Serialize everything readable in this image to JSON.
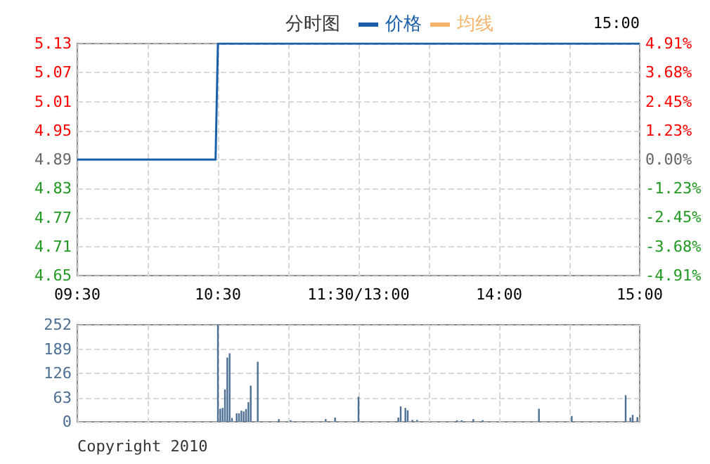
{
  "chart_data": [
    {
      "type": "line",
      "title": "分时图",
      "annotations": [
        "15:00"
      ],
      "categories": [
        "09:30",
        null,
        null,
        null,
        null,
        null,
        null,
        null,
        null,
        null,
        null,
        null,
        null,
        null,
        null,
        null,
        null,
        null,
        null,
        null,
        null,
        null,
        null,
        null,
        null,
        null,
        null,
        null,
        null,
        null,
        null,
        null,
        null,
        null,
        null,
        null,
        null,
        null,
        null,
        null,
        null,
        null,
        null,
        null,
        null,
        null,
        null,
        null,
        null,
        null,
        null,
        null,
        null,
        null,
        null,
        null,
        null,
        null,
        null,
        null,
        "10:30",
        null,
        null,
        null,
        null,
        null,
        null,
        null,
        null,
        null,
        null,
        null,
        null,
        null,
        null,
        null,
        null,
        null,
        null,
        null,
        null,
        null,
        null,
        null,
        null,
        null,
        null,
        null,
        null,
        null,
        null,
        null,
        null,
        null,
        null,
        null,
        null,
        null,
        null,
        null,
        null,
        null,
        null,
        null,
        null,
        null,
        null,
        null,
        null,
        null,
        null,
        null,
        null,
        null,
        null,
        null,
        null,
        null,
        null,
        null,
        "11:30/13:00",
        null,
        null,
        null,
        null,
        null,
        null,
        null,
        null,
        null,
        null,
        null,
        null,
        null,
        null,
        null,
        null,
        null,
        null,
        null,
        null,
        null,
        null,
        null,
        null,
        null,
        null,
        null,
        null,
        null,
        null,
        null,
        null,
        null,
        null,
        null,
        null,
        null,
        null,
        null,
        null,
        null,
        null,
        null,
        null,
        null,
        null,
        null,
        null,
        null,
        null,
        null,
        null,
        null,
        null,
        null,
        null,
        null,
        null,
        null,
        "14:00",
        null,
        null,
        null,
        null,
        null,
        null,
        null,
        null,
        null,
        null,
        null,
        null,
        null,
        null,
        null,
        null,
        null,
        null,
        null,
        null,
        null,
        null,
        null,
        null,
        null,
        null,
        null,
        null,
        null,
        null,
        null,
        null,
        null,
        null,
        null,
        null,
        null,
        null,
        null,
        null,
        null,
        null,
        null,
        null,
        null,
        null,
        null,
        null,
        null,
        null,
        null,
        null,
        null,
        null,
        null,
        null,
        null,
        null,
        null,
        "15:00"
      ],
      "series": [
        {
          "name": "价格",
          "color": "#1a5ea8",
          "values": [
            4.89,
            4.89,
            4.89,
            4.89,
            4.89,
            4.89,
            4.89,
            4.89,
            4.89,
            4.89,
            4.89,
            4.89,
            4.89,
            4.89,
            4.89,
            4.89,
            4.89,
            4.89,
            4.89,
            4.89,
            4.89,
            4.89,
            4.89,
            4.89,
            4.89,
            4.89,
            4.89,
            4.89,
            4.89,
            4.89,
            4.89,
            4.89,
            4.89,
            4.89,
            4.89,
            4.89,
            4.89,
            4.89,
            4.89,
            4.89,
            4.89,
            4.89,
            4.89,
            4.89,
            4.89,
            4.89,
            4.89,
            4.89,
            4.89,
            4.89,
            4.89,
            4.89,
            4.89,
            4.89,
            4.89,
            4.89,
            4.89,
            4.89,
            4.89,
            4.89,
            5.13,
            5.13,
            5.13,
            5.13,
            5.13,
            5.13,
            5.13,
            5.13,
            5.13,
            5.13,
            5.13,
            5.13,
            5.13,
            5.13,
            5.13,
            5.13,
            5.13,
            5.13,
            5.13,
            5.13,
            5.13,
            5.13,
            5.13,
            5.13,
            5.13,
            5.13,
            5.13,
            5.13,
            5.13,
            5.13,
            5.13,
            5.13,
            5.13,
            5.13,
            5.13,
            5.13,
            5.13,
            5.13,
            5.13,
            5.13,
            5.13,
            5.13,
            5.13,
            5.13,
            5.13,
            5.13,
            5.13,
            5.13,
            5.13,
            5.13,
            5.13,
            5.13,
            5.13,
            5.13,
            5.13,
            5.13,
            5.13,
            5.13,
            5.13,
            5.13,
            5.13,
            5.13,
            5.13,
            5.13,
            5.13,
            5.13,
            5.13,
            5.13,
            5.13,
            5.13,
            5.13,
            5.13,
            5.13,
            5.13,
            5.13,
            5.13,
            5.13,
            5.13,
            5.13,
            5.13,
            5.13,
            5.13,
            5.13,
            5.13,
            5.13,
            5.13,
            5.13,
            5.13,
            5.13,
            5.13,
            5.13,
            5.13,
            5.13,
            5.13,
            5.13,
            5.13,
            5.13,
            5.13,
            5.13,
            5.13,
            5.13,
            5.13,
            5.13,
            5.13,
            5.13,
            5.13,
            5.13,
            5.13,
            5.13,
            5.13,
            5.13,
            5.13,
            5.13,
            5.13,
            5.13,
            5.13,
            5.13,
            5.13,
            5.13,
            5.13,
            5.13,
            5.13,
            5.13,
            5.13,
            5.13,
            5.13,
            5.13,
            5.13,
            5.13,
            5.13,
            5.13,
            5.13,
            5.13,
            5.13,
            5.13,
            5.13,
            5.13,
            5.13,
            5.13,
            5.13,
            5.13,
            5.13,
            5.13,
            5.13,
            5.13,
            5.13,
            5.13,
            5.13,
            5.13,
            5.13,
            5.13,
            5.13,
            5.13,
            5.13,
            5.13,
            5.13,
            5.13,
            5.13,
            5.13,
            5.13,
            5.13,
            5.13,
            5.13,
            5.13,
            5.13,
            5.13,
            5.13,
            5.13,
            5.13,
            5.13,
            5.13,
            5.13,
            5.13,
            5.13,
            5.13,
            5.13,
            5.13,
            5.13,
            5.13,
            5.13,
            5.13
          ]
        },
        {
          "name": "均线",
          "color": "#f5b36b",
          "values": [
            null,
            null,
            null,
            null,
            null,
            null,
            null,
            null,
            null,
            null,
            null,
            null,
            null,
            null,
            null,
            null,
            null,
            null,
            null,
            null,
            null,
            null,
            null,
            null,
            null,
            null,
            null,
            null,
            null,
            null,
            null,
            null,
            null,
            null,
            null,
            null,
            null,
            null,
            null,
            null,
            null,
            null,
            null,
            null,
            null,
            null,
            null,
            null,
            null,
            null,
            null,
            null,
            null,
            null,
            null,
            null,
            null,
            null,
            null,
            null,
            null,
            null,
            null,
            null,
            null,
            null,
            null,
            null,
            null,
            null,
            null,
            null,
            null,
            null,
            null,
            null,
            null,
            null,
            null,
            null,
            null,
            null,
            null,
            null,
            null,
            null,
            null,
            null,
            null,
            null,
            null,
            null,
            null,
            null,
            null,
            null,
            null,
            null,
            null,
            null,
            null,
            null,
            null,
            null,
            null,
            null,
            null,
            null,
            null,
            null,
            null,
            null,
            null,
            null,
            null,
            null,
            null,
            null,
            null,
            null,
            null,
            null,
            null,
            null,
            null,
            null,
            null,
            null,
            null,
            null,
            null,
            null,
            null,
            null,
            null,
            null,
            null,
            null,
            null,
            null,
            null,
            null,
            null,
            null,
            null,
            null,
            null,
            null,
            null,
            null,
            null,
            null,
            null,
            null,
            null,
            null,
            null,
            null,
            null,
            null,
            null,
            null,
            null,
            null,
            null,
            null,
            null,
            null,
            null,
            null,
            null,
            null,
            null,
            null,
            null,
            null,
            null,
            null,
            null,
            null,
            null,
            null,
            null,
            null,
            null,
            null,
            null,
            null,
            null,
            null,
            null,
            null,
            null,
            null,
            null,
            null,
            null,
            null,
            null,
            null,
            null,
            null,
            null,
            null,
            null,
            null,
            null,
            null,
            null,
            null,
            null,
            null,
            null,
            null,
            null,
            null,
            null,
            null,
            null,
            null,
            null,
            null,
            null,
            null,
            null,
            null,
            null,
            null,
            null,
            null,
            null,
            null,
            null,
            null,
            null,
            null,
            null,
            null,
            null,
            null,
            null
          ]
        }
      ],
      "ylim": [
        4.65,
        5.13
      ],
      "yticks": [
        4.65,
        4.71,
        4.77,
        4.83,
        4.89,
        4.95,
        5.01,
        5.07,
        5.13
      ],
      "y2lim": [
        -4.91,
        4.91
      ],
      "y2ticks": [
        {
          "value": -4.91,
          "label": "-4.91%"
        },
        {
          "value": -3.68,
          "label": "-3.68%"
        },
        {
          "value": -2.45,
          "label": "-2.45%"
        },
        {
          "value": -1.23,
          "label": "-1.23%"
        },
        {
          "value": 0,
          "label": "0.00%"
        },
        {
          "value": 1.23,
          "label": "1.23%"
        },
        {
          "value": 2.45,
          "label": "2.45%"
        },
        {
          "value": 3.68,
          "label": "3.68%"
        },
        {
          "value": 4.91,
          "label": "4.91%"
        }
      ],
      "grid": true,
      "legend": "top",
      "marker": "none",
      "line_style": "solid"
    },
    {
      "type": "bar",
      "annotations": [
        "Copyright 2010"
      ],
      "color": "#4d6f94",
      "categories": [
        null,
        null,
        null,
        null,
        null,
        null,
        null,
        null,
        null,
        null,
        null,
        null,
        null,
        null,
        null,
        null,
        null,
        null,
        null,
        null,
        null,
        null,
        null,
        null,
        null,
        null,
        null,
        null,
        null,
        null,
        null,
        null,
        null,
        null,
        null,
        null,
        null,
        null,
        null,
        null,
        null,
        null,
        null,
        null,
        null,
        null,
        null,
        null,
        null,
        null,
        null,
        null,
        null,
        null,
        null,
        null,
        null,
        null,
        null,
        null,
        null,
        null,
        null,
        null,
        null,
        null,
        null,
        null,
        null,
        null,
        null,
        null,
        null,
        null,
        null,
        null,
        null,
        null,
        null,
        null,
        null,
        null,
        null,
        null,
        null,
        null,
        null,
        null,
        null,
        null,
        null,
        null,
        null,
        null,
        null,
        null,
        null,
        null,
        null,
        null,
        null,
        null,
        null,
        null,
        null,
        null,
        null,
        null,
        null,
        null,
        null,
        null,
        null,
        null,
        null,
        null,
        null,
        null,
        null,
        null,
        null,
        null,
        null,
        null,
        null,
        null,
        null,
        null,
        null,
        null,
        null,
        null,
        null,
        null,
        null,
        null,
        null,
        null,
        null,
        null,
        null,
        null,
        null,
        null,
        null,
        null,
        null,
        null,
        null,
        null,
        null,
        null,
        null,
        null,
        null,
        null,
        null,
        null,
        null,
        null,
        null,
        null,
        null,
        null,
        null,
        null,
        null,
        null,
        null,
        null,
        null,
        null,
        null,
        null,
        null,
        null,
        null,
        null,
        null,
        null,
        null,
        null,
        null,
        null,
        null,
        null,
        null,
        null,
        null,
        null,
        null,
        null,
        null,
        null,
        null,
        null,
        null,
        null,
        null,
        null,
        null,
        null,
        null,
        null,
        null,
        null,
        null,
        null,
        null,
        null,
        null,
        null,
        null,
        null,
        null,
        null,
        null,
        null,
        null,
        null,
        null,
        null,
        null,
        null,
        null,
        null,
        null,
        null,
        null,
        null,
        null,
        null,
        null,
        null,
        null,
        null,
        null,
        null,
        null,
        null,
        null
      ],
      "values": [
        null,
        null,
        null,
        null,
        null,
        null,
        null,
        null,
        null,
        null,
        null,
        null,
        null,
        null,
        null,
        null,
        null,
        null,
        null,
        null,
        null,
        null,
        null,
        null,
        null,
        null,
        null,
        null,
        null,
        null,
        null,
        null,
        null,
        null,
        null,
        null,
        null,
        null,
        null,
        null,
        null,
        null,
        null,
        null,
        null,
        null,
        null,
        null,
        null,
        null,
        null,
        null,
        null,
        null,
        null,
        null,
        null,
        null,
        null,
        null,
        252,
        34,
        36,
        84,
        167,
        178,
        10,
        null,
        22,
        22,
        29,
        27,
        33,
        51,
        94,
        null,
        null,
        156,
        null,
        null,
        null,
        null,
        null,
        null,
        null,
        null,
        7,
        null,
        null,
        null,
        null,
        4,
        null,
        null,
        null,
        null,
        null,
        null,
        null,
        null,
        null,
        null,
        null,
        null,
        null,
        null,
        7,
        null,
        null,
        null,
        11,
        null,
        null,
        null,
        null,
        null,
        null,
        null,
        null,
        null,
        65,
        null,
        null,
        null,
        null,
        null,
        null,
        null,
        null,
        null,
        null,
        null,
        null,
        null,
        null,
        null,
        null,
        11,
        40,
        null,
        36,
        30,
        null,
        5,
        null,
        5,
        null,
        null,
        null,
        null,
        null,
        null,
        null,
        null,
        null,
        null,
        null,
        null,
        null,
        null,
        null,
        null,
        4,
        null,
        4,
        null,
        null,
        null,
        null,
        7,
        null,
        null,
        null,
        4,
        null,
        null,
        null,
        null,
        null,
        null,
        null,
        null,
        null,
        null,
        null,
        null,
        null,
        null,
        null,
        null,
        null,
        null,
        null,
        null,
        null,
        null,
        null,
        34,
        null,
        null,
        null,
        null,
        null,
        null,
        null,
        null,
        null,
        null,
        null,
        null,
        null,
        15,
        null,
        null,
        null,
        null,
        null,
        null,
        null,
        null,
        null,
        null,
        null,
        null,
        null,
        null,
        null,
        null,
        null,
        null,
        null,
        null,
        null,
        null,
        69,
        null,
        11,
        18,
        null,
        12,
        null
      ],
      "ylim": [
        0,
        252
      ],
      "yticks": [
        0,
        63,
        126,
        189,
        252
      ],
      "grid": true,
      "tick_labels": "y"
    }
  ]
}
